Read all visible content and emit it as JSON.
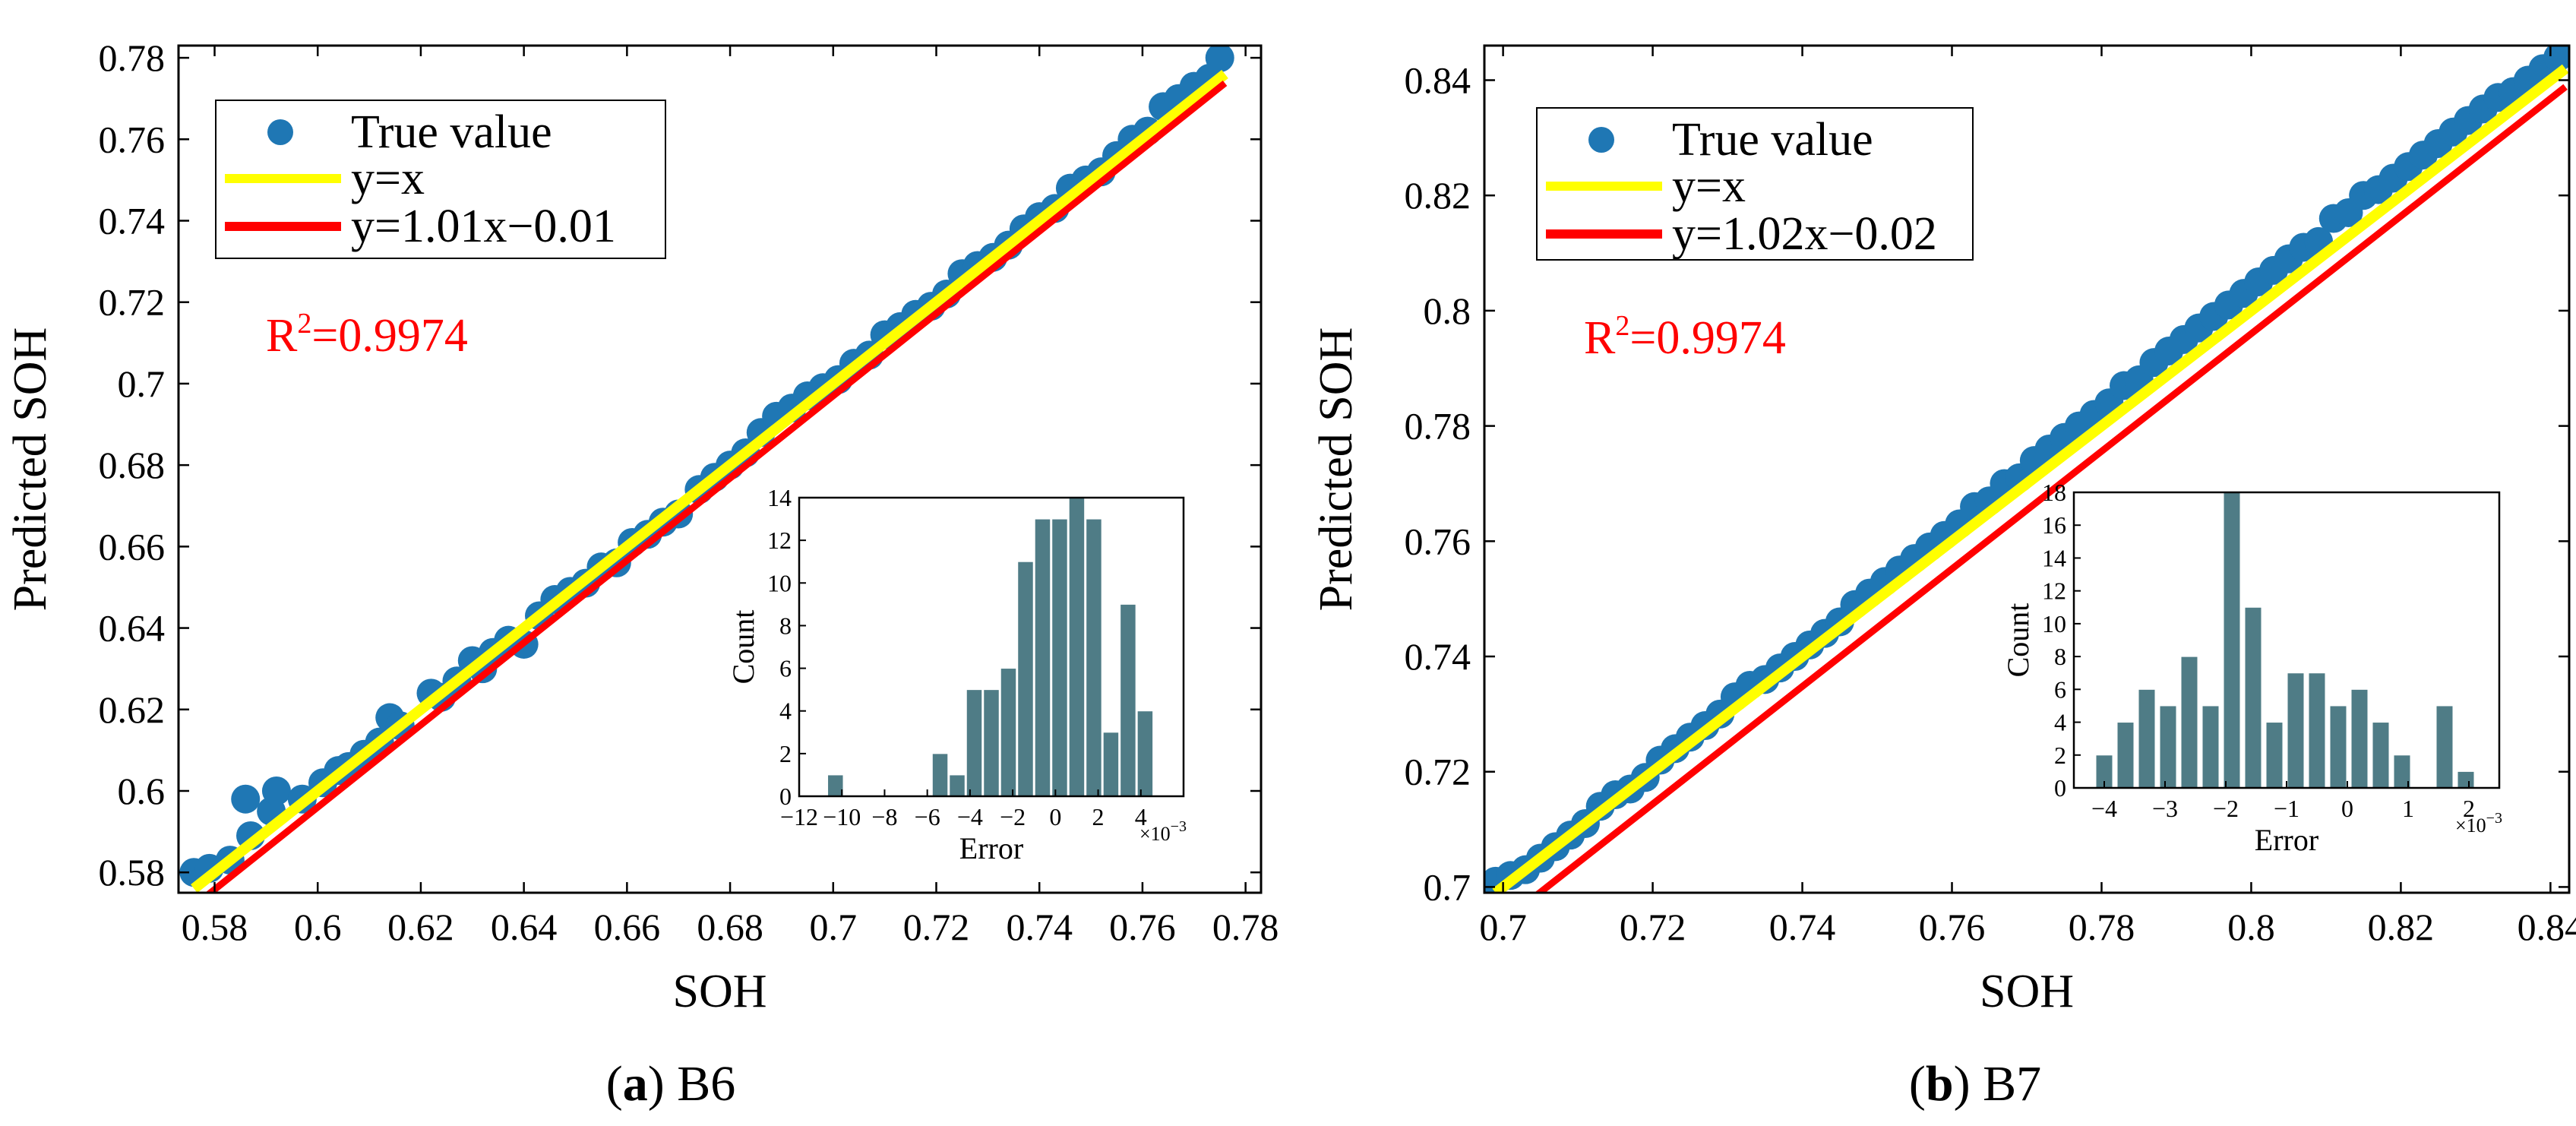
{
  "figure": {
    "panels": [
      {
        "caption_label": "(a)",
        "caption_name": "B6",
        "r2_label": "R",
        "r2_sup": "2",
        "r2_value": "=0.9974",
        "colors": {
          "points": "#1f77b4",
          "ideal": "#ffff00",
          "fit": "#ff0000",
          "bars": "#4f7c86",
          "r2": "#ff0000"
        },
        "chart_data": {
          "type": "scatter",
          "xlabel": "SOH",
          "ylabel": "Predicted SOH",
          "xlim": [
            0.573,
            0.783
          ],
          "ylim": [
            0.575,
            0.783
          ],
          "xticks": [
            0.58,
            0.6,
            0.62,
            0.64,
            0.66,
            0.68,
            0.7,
            0.72,
            0.74,
            0.76,
            0.78
          ],
          "xtick_labels": [
            "0.58",
            "0.6",
            "0.62",
            "0.64",
            "0.66",
            "0.68",
            "0.7",
            "0.72",
            "0.74",
            "0.76",
            "0.78"
          ],
          "yticks": [
            0.58,
            0.6,
            0.62,
            0.64,
            0.66,
            0.68,
            0.7,
            0.72,
            0.74,
            0.76,
            0.78
          ],
          "ytick_labels": [
            "0.58",
            "0.6",
            "0.62",
            "0.64",
            "0.66",
            "0.68",
            "0.7",
            "0.72",
            "0.74",
            "0.76",
            "0.78"
          ],
          "legend": [
            "True value",
            "y=x",
            "y=1.01x−0.01"
          ],
          "legend_position": "top-left",
          "ideal_line": {
            "slope": 1.0,
            "intercept": 0.0,
            "x_range": [
              0.576,
              0.776
            ]
          },
          "fit_line": {
            "slope": 1.01,
            "intercept": -0.01,
            "x_range": [
              0.576,
              0.776
            ]
          },
          "series": [
            {
              "name": "True value",
              "x": [
                0.576,
                0.579,
                0.583,
                0.586,
                0.587,
                0.591,
                0.592,
                0.597,
                0.601,
                0.604,
                0.606,
                0.609,
                0.612,
                0.614,
                0.616,
                0.622,
                0.624,
                0.627,
                0.63,
                0.632,
                0.634,
                0.637,
                0.64,
                0.643,
                0.646,
                0.649,
                0.652,
                0.655,
                0.658,
                0.661,
                0.664,
                0.667,
                0.67,
                0.674,
                0.677,
                0.68,
                0.683,
                0.686,
                0.689,
                0.692,
                0.695,
                0.698,
                0.701,
                0.704,
                0.707,
                0.71,
                0.713,
                0.716,
                0.719,
                0.722,
                0.725,
                0.728,
                0.731,
                0.734,
                0.737,
                0.74,
                0.743,
                0.746,
                0.749,
                0.752,
                0.755,
                0.758,
                0.761,
                0.764,
                0.767,
                0.77,
                0.773,
                0.775
              ],
              "y": [
                0.58,
                0.581,
                0.583,
                0.598,
                0.589,
                0.595,
                0.6,
                0.598,
                0.602,
                0.605,
                0.606,
                0.609,
                0.612,
                0.618,
                0.616,
                0.624,
                0.623,
                0.627,
                0.632,
                0.63,
                0.634,
                0.637,
                0.636,
                0.643,
                0.647,
                0.649,
                0.651,
                0.655,
                0.656,
                0.661,
                0.663,
                0.666,
                0.668,
                0.674,
                0.677,
                0.68,
                0.683,
                0.688,
                0.692,
                0.694,
                0.697,
                0.699,
                0.701,
                0.705,
                0.707,
                0.712,
                0.714,
                0.717,
                0.719,
                0.722,
                0.727,
                0.729,
                0.731,
                0.734,
                0.738,
                0.741,
                0.743,
                0.748,
                0.75,
                0.752,
                0.756,
                0.76,
                0.762,
                0.768,
                0.77,
                0.773,
                0.775,
                0.78
              ]
            }
          ],
          "inset": {
            "type": "bar",
            "xlabel": "Error",
            "ylabel": "Count",
            "scale_label": "×10",
            "scale_exp": "−3",
            "xlim": [
              -12,
              6
            ],
            "ylim": [
              0,
              14
            ],
            "xticks": [
              -12,
              -10,
              -8,
              -6,
              -4,
              -2,
              0,
              2,
              4
            ],
            "xtick_labels": [
              "−12",
              "−10",
              "−8",
              "−6",
              "−4",
              "−2",
              "0",
              "2",
              "4"
            ],
            "yticks": [
              0,
              2,
              4,
              6,
              8,
              10,
              12,
              14
            ],
            "ytick_labels": [
              "0",
              "2",
              "4",
              "6",
              "8",
              "10",
              "12",
              "14"
            ],
            "bin_width": 0.8,
            "bin_centers": [
              -10.3,
              -7.5,
              -5.4,
              -4.6,
              -3.8,
              -3.0,
              -2.2,
              -1.4,
              -0.6,
              0.2,
              1.0,
              1.8,
              2.6,
              3.4,
              4.2
            ],
            "counts": [
              1,
              0,
              2,
              1,
              5,
              5,
              6,
              11,
              13,
              13,
              14,
              13,
              3,
              9,
              4
            ]
          }
        }
      },
      {
        "caption_label": "(b)",
        "caption_name": "B7",
        "r2_label": "R",
        "r2_sup": "2",
        "r2_value": "=0.9974",
        "colors": {
          "points": "#1f77b4",
          "ideal": "#ffff00",
          "fit": "#ff0000",
          "bars": "#4f7c86",
          "r2": "#ff0000"
        },
        "chart_data": {
          "type": "scatter",
          "xlabel": "SOH",
          "ylabel": "Predicted SOH",
          "xlim": [
            0.6975,
            0.8425
          ],
          "ylim": [
            0.699,
            0.846
          ],
          "xticks": [
            0.7,
            0.72,
            0.74,
            0.76,
            0.78,
            0.8,
            0.82,
            0.84
          ],
          "xtick_labels": [
            "0.7",
            "0.72",
            "0.74",
            "0.76",
            "0.78",
            "0.8",
            "0.82",
            "0.84"
          ],
          "yticks": [
            0.7,
            0.72,
            0.74,
            0.76,
            0.78,
            0.8,
            0.82,
            0.84
          ],
          "ytick_labels": [
            "0.7",
            "0.72",
            "0.74",
            "0.76",
            "0.78",
            "0.8",
            "0.82",
            "0.84"
          ],
          "legend": [
            "True value",
            "y=x",
            "y=1.02x−0.02"
          ],
          "legend_position": "top-left",
          "ideal_line": {
            "slope": 1.0,
            "intercept": 0.0,
            "x_range": [
              0.699,
              0.842
            ]
          },
          "fit_line": {
            "slope": 1.02,
            "intercept": -0.02,
            "x_range": [
              0.699,
              0.842
            ]
          },
          "series": [
            {
              "name": "True value",
              "x": [
                0.699,
                0.701,
                0.703,
                0.705,
                0.707,
                0.709,
                0.711,
                0.713,
                0.715,
                0.717,
                0.719,
                0.721,
                0.723,
                0.725,
                0.727,
                0.729,
                0.731,
                0.733,
                0.735,
                0.737,
                0.739,
                0.741,
                0.743,
                0.745,
                0.747,
                0.749,
                0.751,
                0.753,
                0.755,
                0.757,
                0.759,
                0.761,
                0.763,
                0.765,
                0.767,
                0.769,
                0.771,
                0.773,
                0.775,
                0.777,
                0.779,
                0.781,
                0.783,
                0.785,
                0.787,
                0.789,
                0.791,
                0.793,
                0.795,
                0.797,
                0.799,
                0.801,
                0.803,
                0.805,
                0.807,
                0.809,
                0.811,
                0.813,
                0.815,
                0.817,
                0.819,
                0.821,
                0.823,
                0.825,
                0.827,
                0.829,
                0.831,
                0.833,
                0.835,
                0.837,
                0.839,
                0.841
              ],
              "y": [
                0.701,
                0.702,
                0.703,
                0.705,
                0.707,
                0.709,
                0.711,
                0.714,
                0.716,
                0.717,
                0.719,
                0.722,
                0.724,
                0.726,
                0.728,
                0.73,
                0.733,
                0.735,
                0.736,
                0.738,
                0.74,
                0.742,
                0.744,
                0.746,
                0.749,
                0.751,
                0.753,
                0.755,
                0.757,
                0.759,
                0.761,
                0.763,
                0.766,
                0.767,
                0.77,
                0.771,
                0.774,
                0.776,
                0.778,
                0.78,
                0.782,
                0.784,
                0.787,
                0.788,
                0.791,
                0.793,
                0.795,
                0.797,
                0.799,
                0.801,
                0.803,
                0.805,
                0.807,
                0.809,
                0.811,
                0.812,
                0.816,
                0.817,
                0.82,
                0.821,
                0.823,
                0.825,
                0.827,
                0.829,
                0.831,
                0.833,
                0.835,
                0.837,
                0.838,
                0.84,
                0.842,
                0.844
              ]
            }
          ],
          "inset": {
            "type": "bar",
            "xlabel": "Error",
            "ylabel": "Count",
            "scale_label": "×10",
            "scale_exp": "−3",
            "xlim": [
              -4.5,
              2.5
            ],
            "ylim": [
              0,
              18
            ],
            "xticks": [
              -4,
              -3,
              -2,
              -1,
              0,
              1,
              2
            ],
            "xtick_labels": [
              "−4",
              "−3",
              "−2",
              "−1",
              "0",
              "1",
              "2"
            ],
            "yticks": [
              0,
              2,
              4,
              6,
              8,
              10,
              12,
              14,
              16,
              18
            ],
            "ytick_labels": [
              "0",
              "2",
              "4",
              "6",
              "8",
              "10",
              "12",
              "14",
              "16",
              "18"
            ],
            "bin_width": 0.3,
            "bin_centers": [
              -4.0,
              -3.65,
              -3.3,
              -2.95,
              -2.6,
              -2.25,
              -1.9,
              -1.55,
              -1.2,
              -0.85,
              -0.5,
              -0.15,
              0.2,
              0.55,
              0.9,
              1.25,
              1.6,
              1.95
            ],
            "counts": [
              2,
              4,
              6,
              5,
              8,
              5,
              18,
              11,
              4,
              7,
              7,
              5,
              6,
              4,
              2,
              0,
              5,
              1
            ]
          }
        }
      }
    ]
  }
}
